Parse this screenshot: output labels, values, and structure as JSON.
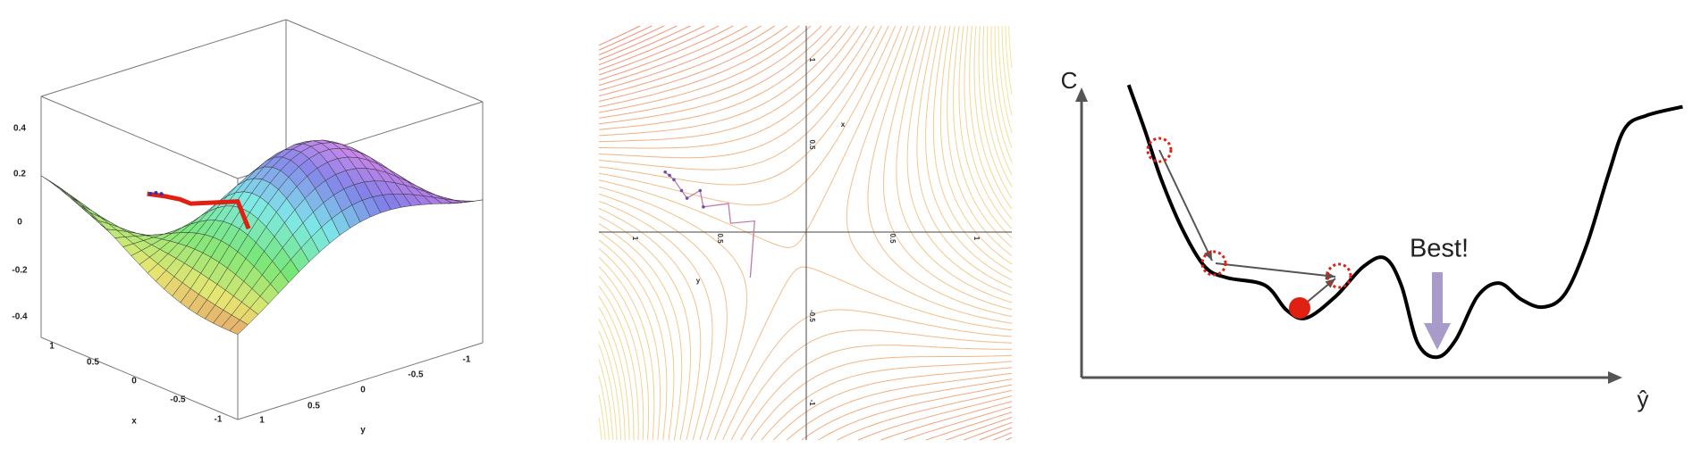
{
  "surface_plot": {
    "z_ticks": [
      "0.4",
      "0.2",
      "0",
      "-0.2",
      "-0.4"
    ],
    "x_ticks": [
      "1",
      "0.5",
      "0",
      "-0.5",
      "-1"
    ],
    "x_label": "x",
    "y_ticks": [
      "1",
      "0.5",
      "0",
      "-0.5",
      "-1"
    ],
    "y_label": "y"
  },
  "contour_plot": {
    "y_ticks": [
      "1",
      "0.5",
      "-0.5",
      "-1"
    ],
    "x_ticks": [
      "1",
      "0.5",
      "0.5",
      "1"
    ],
    "x_label": "x",
    "y_label": "y"
  },
  "cost_diagram": {
    "y_label": "C",
    "x_label": "ŷ",
    "annotation": "Best!"
  }
}
